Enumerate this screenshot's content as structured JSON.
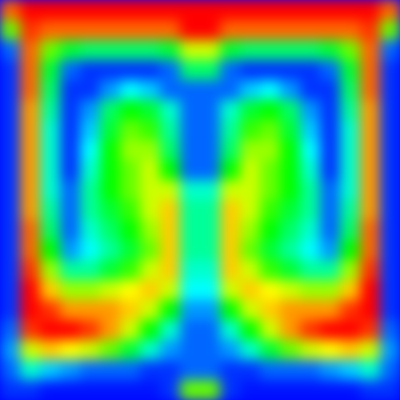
{
  "chart_data": {
    "type": "heatmap",
    "tick_labels": false,
    "zlim": [
      0,
      1
    ],
    "colors": [
      "#0000ff",
      "#00ffff",
      "#00ff00",
      "#ffff00",
      "#ff0000"
    ],
    "cells": [
      [
        0.9,
        1,
        1,
        1,
        1,
        1,
        1,
        1,
        1,
        1,
        1,
        1,
        1,
        1,
        1,
        1,
        1,
        1,
        1,
        0.9
      ],
      [
        0.6,
        0.95,
        0.9,
        0.9,
        0.9,
        0.9,
        0.9,
        0.9,
        0.9,
        1,
        1,
        0.9,
        0.9,
        0.9,
        0.9,
        0.9,
        0.9,
        0.9,
        0.95,
        0.6
      ],
      [
        0.1,
        0.9,
        0.6,
        0.45,
        0.4,
        0.4,
        0.4,
        0.4,
        0.45,
        0.7,
        0.7,
        0.45,
        0.4,
        0.4,
        0.4,
        0.4,
        0.45,
        0.6,
        0.9,
        0.1
      ],
      [
        0.05,
        0.9,
        0.45,
        0.1,
        0.05,
        0.05,
        0.05,
        0.05,
        0.1,
        0.4,
        0.4,
        0.1,
        0.05,
        0.05,
        0.05,
        0.05,
        0.1,
        0.45,
        0.9,
        0.05
      ],
      [
        0.05,
        0.9,
        0.4,
        0.05,
        0.05,
        0.15,
        0.25,
        0.2,
        0.1,
        0.1,
        0.1,
        0.1,
        0.2,
        0.25,
        0.15,
        0.05,
        0.05,
        0.4,
        0.9,
        0.05
      ],
      [
        0.05,
        0.85,
        0.35,
        0.05,
        0.15,
        0.4,
        0.5,
        0.45,
        0.3,
        0.1,
        0.1,
        0.3,
        0.45,
        0.5,
        0.4,
        0.15,
        0.05,
        0.35,
        0.85,
        0.05
      ],
      [
        0.05,
        0.85,
        0.3,
        0.05,
        0.2,
        0.45,
        0.6,
        0.55,
        0.35,
        0.1,
        0.1,
        0.35,
        0.55,
        0.6,
        0.45,
        0.2,
        0.05,
        0.3,
        0.85,
        0.05
      ],
      [
        0.05,
        0.85,
        0.3,
        0.05,
        0.25,
        0.5,
        0.65,
        0.65,
        0.4,
        0.1,
        0.1,
        0.4,
        0.65,
        0.65,
        0.5,
        0.25,
        0.05,
        0.3,
        0.85,
        0.05
      ],
      [
        0.05,
        0.85,
        0.3,
        0.05,
        0.3,
        0.5,
        0.6,
        0.7,
        0.5,
        0.1,
        0.1,
        0.5,
        0.7,
        0.6,
        0.5,
        0.3,
        0.05,
        0.3,
        0.85,
        0.05
      ],
      [
        0.05,
        0.85,
        0.3,
        0.1,
        0.35,
        0.5,
        0.6,
        0.7,
        0.7,
        0.3,
        0.3,
        0.7,
        0.7,
        0.6,
        0.5,
        0.35,
        0.1,
        0.3,
        0.85,
        0.05
      ],
      [
        0.05,
        0.85,
        0.35,
        0.1,
        0.35,
        0.45,
        0.55,
        0.7,
        0.8,
        0.35,
        0.35,
        0.8,
        0.7,
        0.55,
        0.45,
        0.35,
        0.1,
        0.35,
        0.85,
        0.05
      ],
      [
        0.05,
        0.9,
        0.4,
        0.1,
        0.3,
        0.4,
        0.5,
        0.65,
        0.8,
        0.35,
        0.35,
        0.8,
        0.65,
        0.5,
        0.4,
        0.3,
        0.1,
        0.4,
        0.9,
        0.05
      ],
      [
        0.05,
        0.9,
        0.5,
        0.15,
        0.25,
        0.35,
        0.45,
        0.6,
        0.8,
        0.35,
        0.35,
        0.8,
        0.6,
        0.45,
        0.35,
        0.25,
        0.15,
        0.5,
        0.9,
        0.05
      ],
      [
        0.05,
        0.95,
        0.65,
        0.35,
        0.35,
        0.45,
        0.55,
        0.7,
        0.8,
        0.3,
        0.3,
        0.8,
        0.7,
        0.55,
        0.45,
        0.35,
        0.35,
        0.65,
        0.95,
        0.05
      ],
      [
        0.05,
        1,
        0.8,
        0.65,
        0.65,
        0.7,
        0.75,
        0.8,
        0.7,
        0.25,
        0.25,
        0.7,
        0.8,
        0.75,
        0.7,
        0.65,
        0.65,
        0.8,
        1,
        0.05
      ],
      [
        0.05,
        1,
        0.95,
        0.85,
        0.85,
        0.85,
        0.8,
        0.7,
        0.5,
        0.15,
        0.15,
        0.5,
        0.7,
        0.8,
        0.85,
        0.85,
        0.85,
        0.95,
        1,
        0.05
      ],
      [
        0.1,
        0.95,
        1,
        1,
        0.95,
        0.85,
        0.7,
        0.5,
        0.3,
        0.1,
        0.1,
        0.3,
        0.5,
        0.7,
        0.85,
        0.95,
        1,
        1,
        0.95,
        0.1
      ],
      [
        0.15,
        0.7,
        0.8,
        0.75,
        0.7,
        0.6,
        0.45,
        0.3,
        0.15,
        0.1,
        0.1,
        0.15,
        0.3,
        0.45,
        0.6,
        0.7,
        0.75,
        0.8,
        0.7,
        0.15
      ],
      [
        0.1,
        0.3,
        0.2,
        0.15,
        0.1,
        0.1,
        0.1,
        0.05,
        0.05,
        0.1,
        0.1,
        0.05,
        0.05,
        0.1,
        0.1,
        0.1,
        0.15,
        0.2,
        0.3,
        0.1
      ],
      [
        0.05,
        0.05,
        0.02,
        0.02,
        0.02,
        0.02,
        0.02,
        0.02,
        0.05,
        0.6,
        0.6,
        0.05,
        0.02,
        0.02,
        0.02,
        0.02,
        0.02,
        0.02,
        0.05,
        0.05
      ]
    ]
  }
}
